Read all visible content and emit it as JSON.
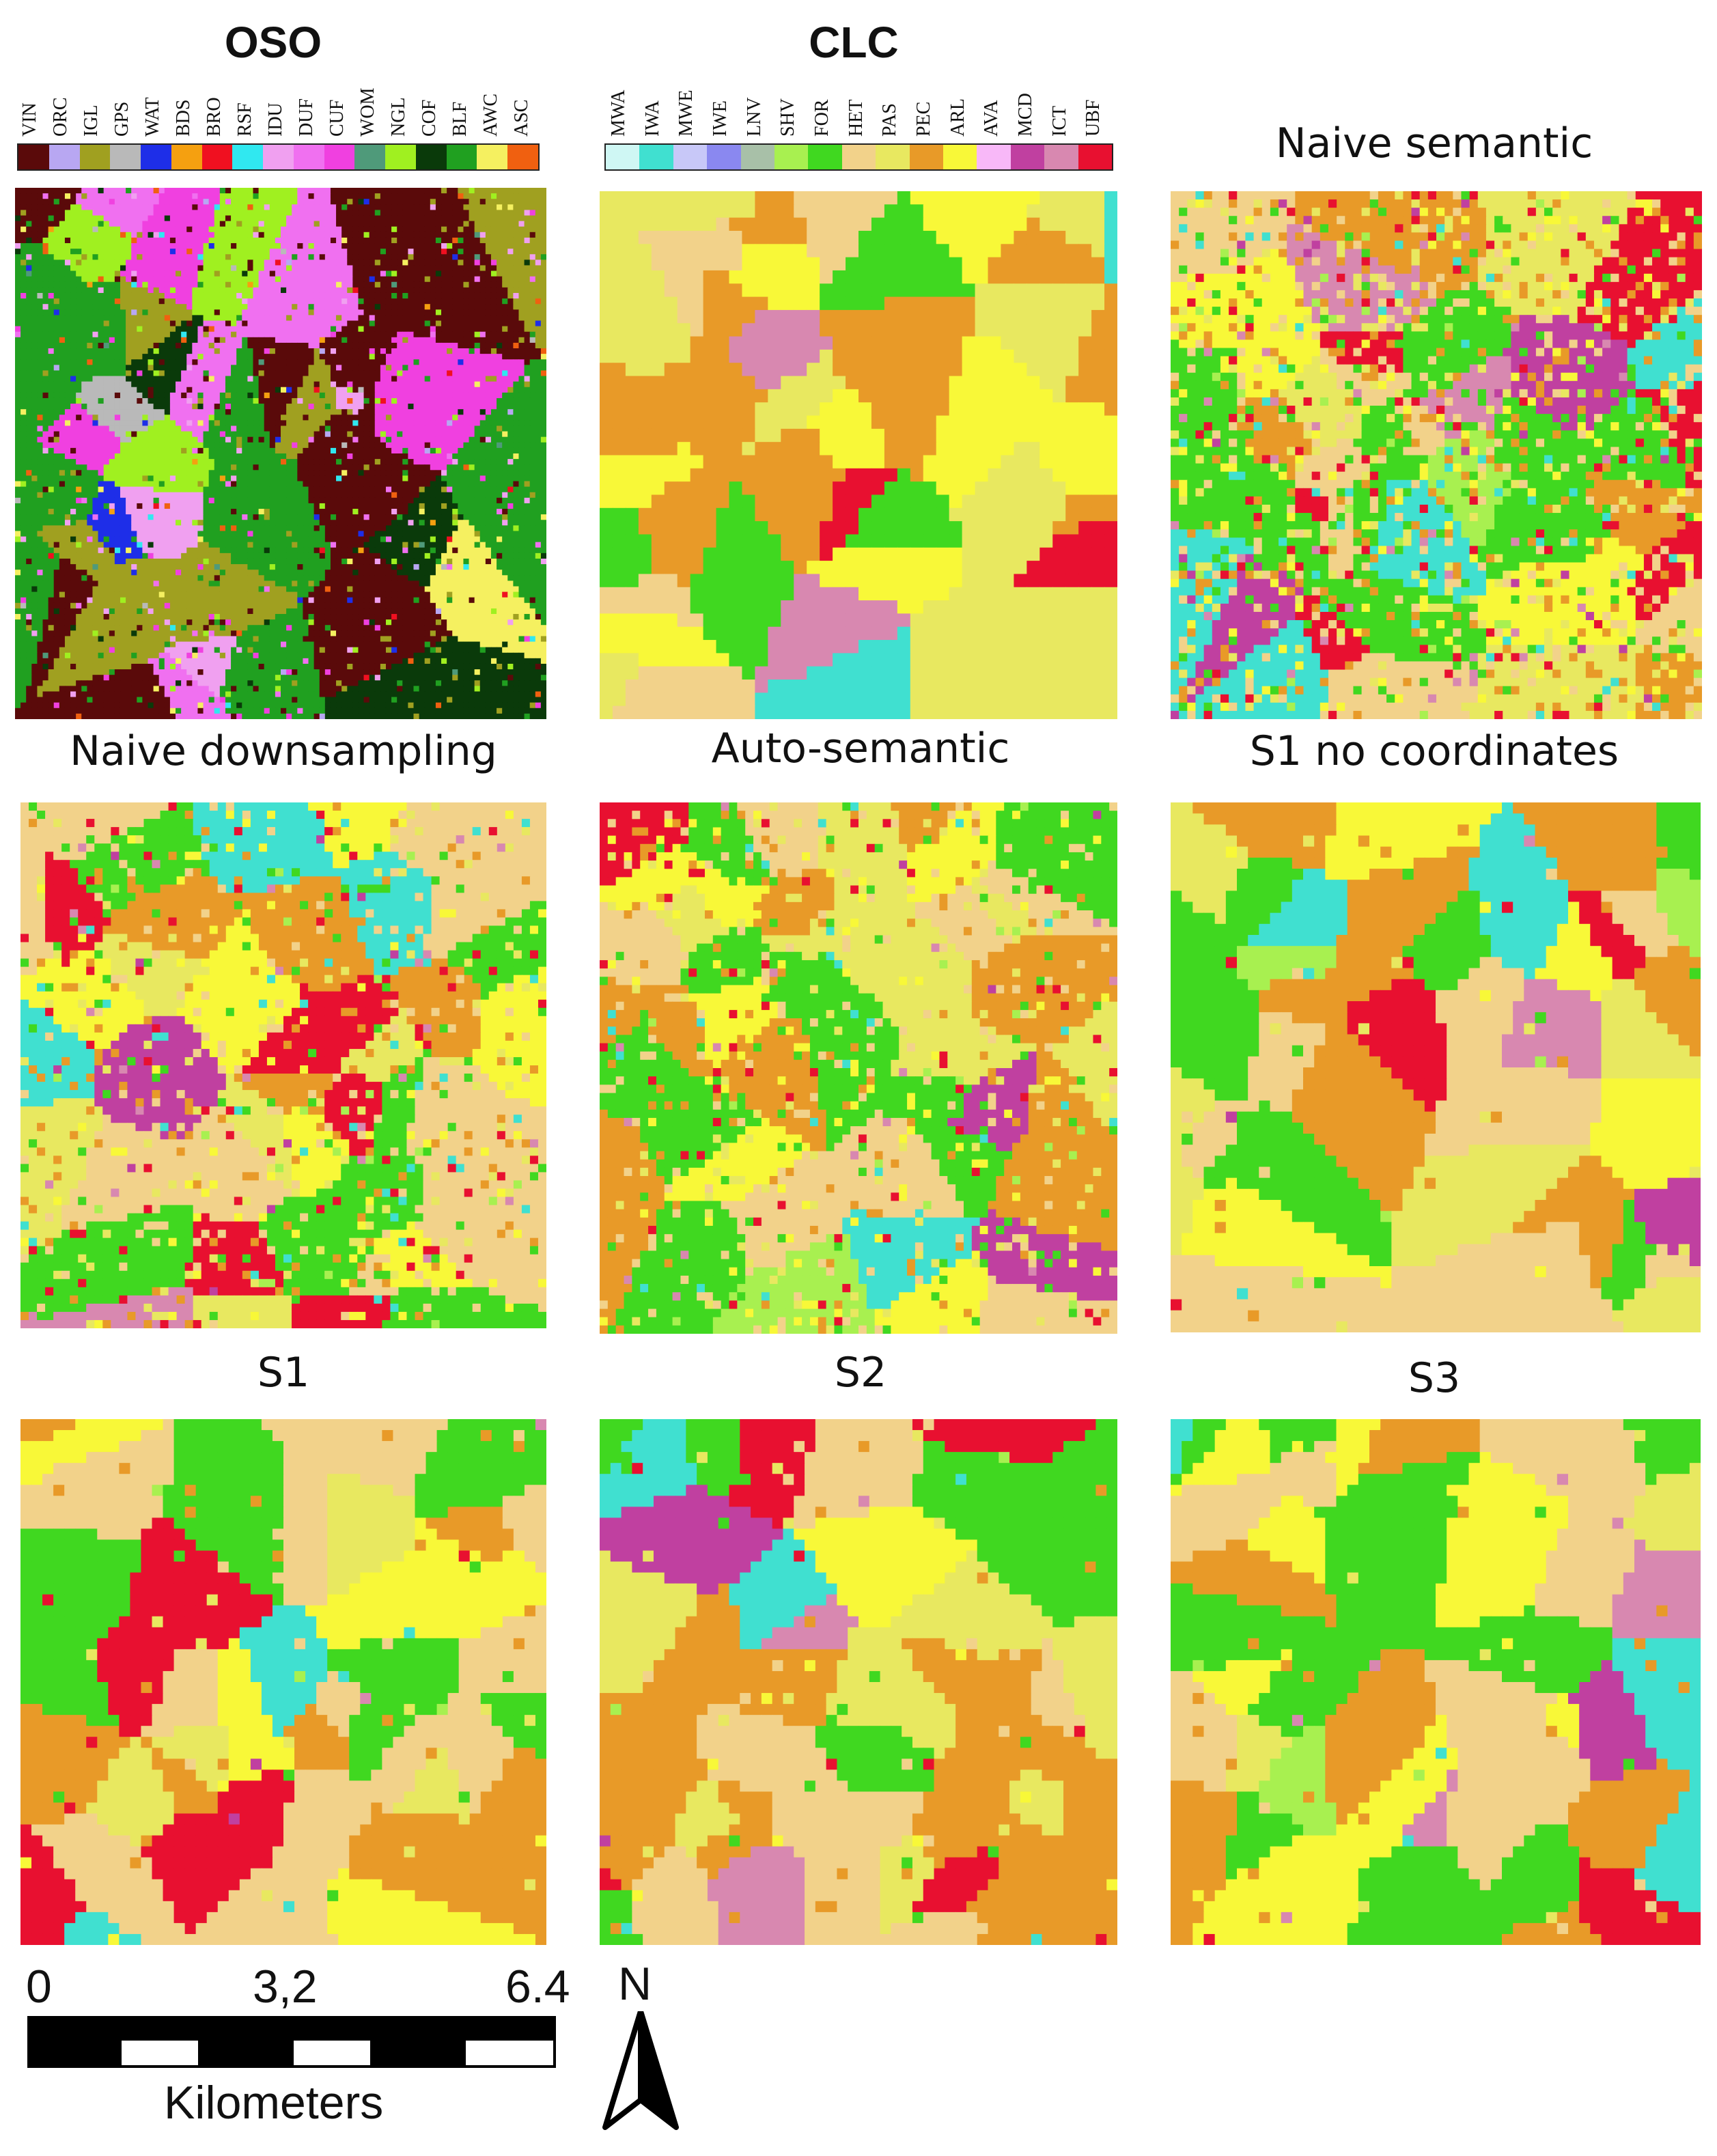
{
  "oso": {
    "title": "OSO",
    "classes": [
      {
        "code": "VIN",
        "color": "#5a0a0a"
      },
      {
        "code": "ORC",
        "color": "#b8a7f2"
      },
      {
        "code": "IGL",
        "color": "#a0a020"
      },
      {
        "code": "GPS",
        "color": "#b9b9b9"
      },
      {
        "code": "WAT",
        "color": "#1e2ee8"
      },
      {
        "code": "BDS",
        "color": "#f5a010"
      },
      {
        "code": "BRO",
        "color": "#f01020"
      },
      {
        "code": "RSF",
        "color": "#30e8f0"
      },
      {
        "code": "IDU",
        "color": "#f0a0f0"
      },
      {
        "code": "DUF",
        "color": "#f070f0"
      },
      {
        "code": "CUF",
        "color": "#f040e0"
      },
      {
        "code": "WOM",
        "color": "#4f9a7a"
      },
      {
        "code": "NGL",
        "color": "#a0f020"
      },
      {
        "code": "COF",
        "color": "#0a3a0a"
      },
      {
        "code": "BLF",
        "color": "#20a020"
      },
      {
        "code": "AWC",
        "color": "#f5f060"
      },
      {
        "code": "ASC",
        "color": "#f06010"
      }
    ]
  },
  "clc": {
    "title": "CLC",
    "classes": [
      {
        "code": "MWA",
        "color": "#cff7f4"
      },
      {
        "code": "IWA",
        "color": "#40e0d0"
      },
      {
        "code": "MWE",
        "color": "#c8c8f8"
      },
      {
        "code": "IWE",
        "color": "#8a88f0"
      },
      {
        "code": "LNV",
        "color": "#a8c0a8"
      },
      {
        "code": "SHV",
        "color": "#a8f050"
      },
      {
        "code": "FOR",
        "color": "#40d820"
      },
      {
        "code": "HET",
        "color": "#f2d28a"
      },
      {
        "code": "PAS",
        "color": "#e8e860"
      },
      {
        "code": "PEC",
        "color": "#e89a28"
      },
      {
        "code": "ARL",
        "color": "#f8f838"
      },
      {
        "code": "AVA",
        "color": "#f8b8f8"
      },
      {
        "code": "MCD",
        "color": "#c040a0"
      },
      {
        "code": "ICT",
        "color": "#d888b0"
      },
      {
        "code": "UBF",
        "color": "#e81030"
      }
    ]
  },
  "panels": [
    {
      "id": "oso-map",
      "title": "",
      "scheme": "oso",
      "seed": 11
    },
    {
      "id": "clc-map",
      "title": "",
      "scheme": "clc",
      "seed": 23
    },
    {
      "id": "naive-semantic",
      "title": "Naive semantic",
      "scheme": "clc",
      "seed": 37
    },
    {
      "id": "naive-downsampling",
      "title": "Naive downsampling",
      "scheme": "clc",
      "seed": 41
    },
    {
      "id": "auto-semantic",
      "title": "Auto-semantic",
      "scheme": "clc",
      "seed": 53
    },
    {
      "id": "s1-no-coordinates",
      "title": "S1 no coordinates",
      "scheme": "clc",
      "seed": 67
    },
    {
      "id": "s1",
      "title": "S1",
      "scheme": "clc",
      "seed": 71
    },
    {
      "id": "s2",
      "title": "S2",
      "scheme": "clc",
      "seed": 83
    },
    {
      "id": "s3",
      "title": "S3",
      "scheme": "clc",
      "seed": 97
    }
  ],
  "scalebar": {
    "ticks": [
      "0",
      "3,2",
      "6.4"
    ],
    "unit": "Kilometers",
    "north": "N"
  }
}
